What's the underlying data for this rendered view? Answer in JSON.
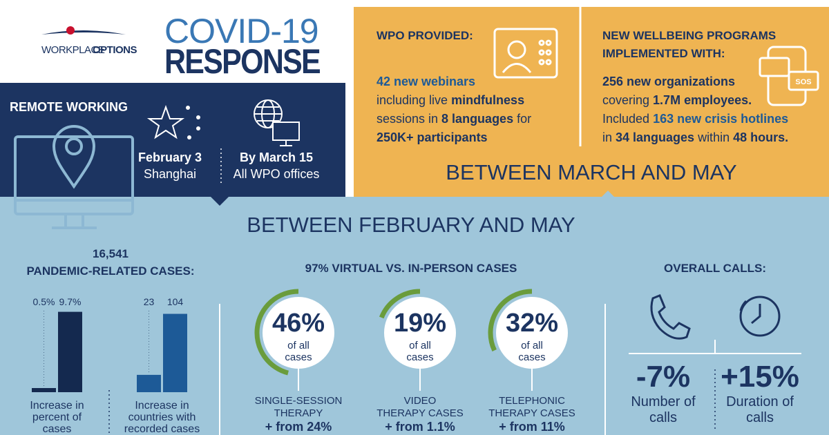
{
  "header": {
    "logo_1": "WORKPLACE",
    "logo_2": "OPTIONS",
    "title_1": "COVID-19",
    "title_2": "RESPONSE"
  },
  "remote": {
    "title": "REMOTE WORKING",
    "items": [
      {
        "date": "February 3",
        "place": "Shanghai"
      },
      {
        "date": "By March 15",
        "place": "All WPO offices"
      }
    ]
  },
  "provided": {
    "title": [
      "WPO PROVIDED:"
    ],
    "lines": [
      [
        [
          "42 new webinars",
          "hl"
        ]
      ],
      [
        [
          "including live ",
          "n"
        ],
        [
          "mindfulness",
          "b"
        ]
      ],
      [
        [
          "sessions in ",
          "n"
        ],
        [
          "8 languages",
          "b"
        ],
        [
          " for",
          "n"
        ]
      ],
      [
        [
          "250K+ participants",
          "b"
        ]
      ]
    ]
  },
  "wellbeing": {
    "title": [
      "NEW WELLBEING PROGRAMS",
      "IMPLEMENTED WITH:"
    ],
    "lines": [
      [
        [
          "256 new organizations",
          "b"
        ]
      ],
      [
        [
          "covering ",
          "n"
        ],
        [
          "1.7M employees.",
          "b"
        ]
      ],
      [
        [
          "Included ",
          "n"
        ],
        [
          "163 new crisis hotlines",
          "hl"
        ]
      ],
      [
        [
          "in ",
          "n"
        ],
        [
          "34 languages",
          "b"
        ],
        [
          " within ",
          "n"
        ],
        [
          "48 hours.",
          "b"
        ]
      ]
    ]
  },
  "period_1": "BETWEEN MARCH AND MAY",
  "period_2": "BETWEEN FEBRUARY AND MAY",
  "cases": {
    "total": "16,541",
    "title": "PANDEMIC-RELATED CASES:"
  },
  "virtual_title": "97% VIRTUAL VS. IN-PERSON CASES",
  "chart_data": [
    {
      "type": "bar",
      "values": [
        0.5,
        9.7
      ],
      "value_labels": [
        "0.5%",
        "9.7%"
      ],
      "colors": [
        "#14294f",
        "#14294f"
      ],
      "ylim": [
        0,
        10
      ],
      "caption": [
        "Increase in",
        "percent of",
        "cases"
      ]
    },
    {
      "type": "bar",
      "values": [
        23,
        104
      ],
      "colors": [
        "#1d5a97",
        "#1d5a97"
      ],
      "ylim": [
        0,
        110
      ],
      "caption": [
        "Increase in",
        "countries with",
        "recorded cases"
      ]
    },
    {
      "type": "gauge",
      "ylim": [
        0,
        100
      ],
      "color": "#6a9c3c",
      "items": [
        {
          "value": 46,
          "value_label": "46%",
          "sub": [
            "of all",
            "cases"
          ],
          "caption": [
            "SINGLE-SESSION",
            "THERAPY"
          ],
          "change": "+ from 24%"
        },
        {
          "value": 19,
          "value_label": "19%",
          "sub": [
            "of all",
            "cases"
          ],
          "caption": [
            "VIDEO",
            "THERAPY CASES"
          ],
          "change": "+ from 1.1%"
        },
        {
          "value": 32,
          "value_label": "32%",
          "sub": [
            "of all",
            "cases"
          ],
          "caption": [
            "TELEPHONIC",
            "THERAPY CASES"
          ],
          "change": "+ from 11%"
        }
      ]
    }
  ],
  "calls": {
    "title": "OVERALL CALLS:",
    "items": [
      {
        "value": "-7%",
        "label": [
          "Number of",
          "calls"
        ]
      },
      {
        "value": "+15%",
        "label": [
          "Duration of",
          "calls"
        ]
      }
    ]
  }
}
